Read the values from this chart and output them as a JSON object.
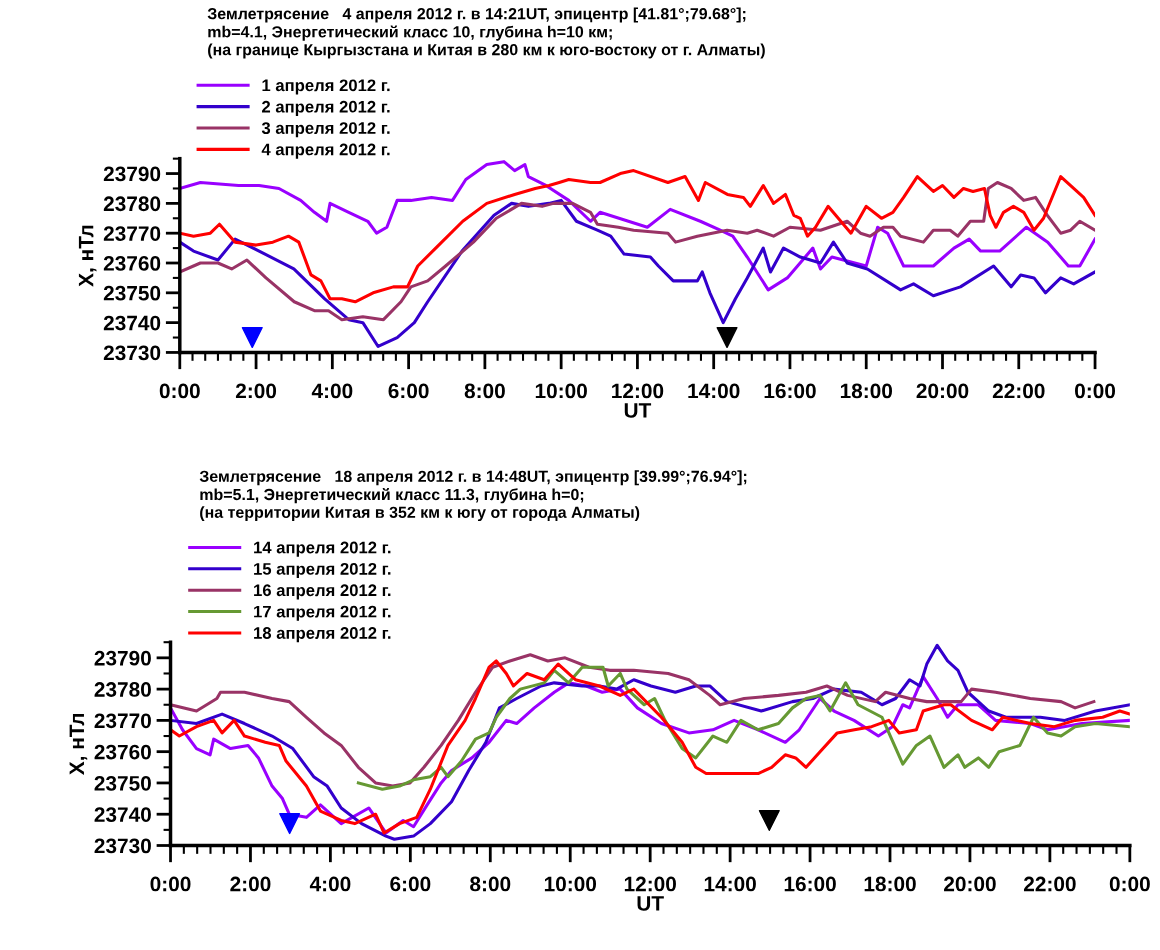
{
  "chart_data": [
    {
      "type": "line",
      "title": "Землетрясение   4 апреля 2012 г. в 14:21UT, эпицентр [41.81°;79.68°];\nmb=4.1, Энергетический класс 10, глубина h=10 км;\n(на границе Кыргызстана и Китая в 280 км к юго-востоку от г. Алматы)",
      "xlabel": "UT",
      "ylabel": "X, нТл",
      "xlim": [
        0,
        24
      ],
      "xticks": [
        {
          "value": 0,
          "label": "0:00"
        },
        {
          "value": 2,
          "label": "2:00"
        },
        {
          "value": 4,
          "label": "4:00"
        },
        {
          "value": 6,
          "label": "6:00"
        },
        {
          "value": 8,
          "label": "8:00"
        },
        {
          "value": 10,
          "label": "10:00"
        },
        {
          "value": 12,
          "label": "12:00"
        },
        {
          "value": 14,
          "label": "14:00"
        },
        {
          "value": 16,
          "label": "16:00"
        },
        {
          "value": 18,
          "label": "18:00"
        },
        {
          "value": 20,
          "label": "20:00"
        },
        {
          "value": 22,
          "label": "22:00"
        },
        {
          "value": 24,
          "label": "0:00"
        }
      ],
      "ylim": [
        23730,
        23795
      ],
      "yticks": [
        23730,
        23740,
        23750,
        23760,
        23770,
        23780,
        23790
      ],
      "legend": "top left",
      "grid": false,
      "series": [
        {
          "name": "1 апреля 2012 г.",
          "color": "#9900ff",
          "x": [
            0,
            0.54,
            1.54,
            2.08,
            2.6,
            3.17,
            3.53,
            3.85,
            3.94,
            4.43,
            4.93,
            5.16,
            5.43,
            5.7,
            6.06,
            6.6,
            7.15,
            7.5,
            8.05,
            8.5,
            8.78,
            9.05,
            9.14,
            9.6,
            10.2,
            10.77,
            11.02,
            12.26,
            12.86,
            13.65,
            14.17,
            14.5,
            14.88,
            15.43,
            15.93,
            16.6,
            16.8,
            17.1,
            18.0,
            18.3,
            18.56,
            18.98,
            19.76,
            20.3,
            20.7,
            21.0,
            21.5,
            22.2,
            22.76,
            23.3,
            23.6,
            24.0
          ],
          "values": [
            23785,
            23787,
            23786,
            23786,
            23785,
            23781,
            23777,
            23774,
            23780,
            23777,
            23774,
            23770,
            23772,
            23781,
            23781,
            23782,
            23781,
            23788,
            23793,
            23794,
            23791,
            23793,
            23789,
            23786,
            23781,
            23774,
            23777,
            23772,
            23778,
            23774,
            23771,
            23769,
            23762,
            23751,
            23755,
            23765,
            23758,
            23762,
            23759,
            23772,
            23770,
            23759,
            23759,
            23765,
            23768,
            23764,
            23764,
            23772,
            23767,
            23759,
            23759,
            23768
          ]
        },
        {
          "name": "2 апреля 2012 г.",
          "color": "#3300cc",
          "x": [
            0,
            0.36,
            1.0,
            1.45,
            2.08,
            2.99,
            3.8,
            4.43,
            4.8,
            5.2,
            5.7,
            6.15,
            6.5,
            7.4,
            8.24,
            8.7,
            9.14,
            9.68,
            10.0,
            10.4,
            10.95,
            11.3,
            11.65,
            12.34,
            12.55,
            12.94,
            13.57,
            13.7,
            13.9,
            14.25,
            14.57,
            14.88,
            15.3,
            15.49,
            15.83,
            16.27,
            16.8,
            17.14,
            17.5,
            18.03,
            18.9,
            19.24,
            19.76,
            20.47,
            21.34,
            21.8,
            22.05,
            22.4,
            22.7,
            23.1,
            23.44,
            24.0
          ],
          "values": [
            23767,
            23764,
            23761,
            23768,
            23764,
            23758,
            23748,
            23741,
            23740,
            23732,
            23735,
            23740,
            23747,
            23764,
            23776,
            23780,
            23779,
            23780,
            23781,
            23774,
            23771,
            23769,
            23763,
            23762,
            23759,
            23754,
            23754,
            23757,
            23750,
            23740,
            23748,
            23755,
            23765,
            23757,
            23765,
            23762,
            23760,
            23767,
            23760,
            23758,
            23751,
            23753,
            23749,
            23752,
            23759,
            23752,
            23756,
            23755,
            23750,
            23755,
            23753,
            23757
          ]
        },
        {
          "name": "3 апреля 2012 г.",
          "color": "#993366",
          "x": [
            0,
            0.54,
            1.0,
            1.36,
            1.76,
            2.26,
            3.0,
            3.53,
            3.9,
            4.25,
            4.8,
            5.34,
            5.8,
            6.06,
            6.5,
            6.97,
            7.7,
            8.3,
            8.96,
            9.5,
            9.8,
            10.3,
            10.77,
            10.95,
            11.5,
            11.9,
            12.8,
            13.0,
            13.57,
            14.35,
            14.88,
            15.14,
            15.57,
            16.0,
            16.8,
            17.5,
            17.85,
            18.1,
            18.45,
            18.7,
            18.9,
            19.5,
            19.76,
            20.2,
            20.4,
            20.73,
            21.08,
            21.2,
            21.44,
            21.8,
            22.13,
            22.44,
            22.75,
            23.1,
            23.36,
            23.6,
            24.0
          ],
          "values": [
            23757,
            23760,
            23760,
            23758,
            23761,
            23755,
            23747,
            23744,
            23744,
            23741,
            23742,
            23741,
            23747,
            23752,
            23754,
            23759,
            23767,
            23775,
            23780,
            23779,
            23780,
            23780,
            23777,
            23773,
            23772,
            23771,
            23770,
            23767,
            23769,
            23771,
            23770,
            23771,
            23769,
            23772,
            23771,
            23774,
            23770,
            23769,
            23772,
            23772,
            23769,
            23767,
            23771,
            23771,
            23769,
            23774,
            23774,
            23785,
            23787,
            23785,
            23781,
            23782,
            23776,
            23770,
            23771,
            23774,
            23771
          ]
        },
        {
          "name": "4 апреля 2012 г.",
          "color": "#ff0000",
          "x": [
            0,
            0.36,
            0.8,
            1.04,
            1.45,
            2.0,
            2.44,
            2.85,
            3.12,
            3.44,
            3.7,
            3.94,
            4.25,
            4.6,
            5.07,
            5.6,
            5.97,
            6.24,
            6.79,
            7.42,
            8.05,
            8.78,
            9.32,
            9.68,
            9.95,
            10.2,
            10.77,
            11.02,
            11.55,
            11.9,
            12.8,
            13.25,
            13.6,
            13.78,
            14.36,
            14.78,
            14.96,
            15.3,
            15.57,
            15.88,
            16.1,
            16.27,
            16.46,
            16.67,
            17.0,
            17.6,
            18.0,
            18.4,
            18.7,
            18.98,
            19.34,
            19.76,
            20.0,
            20.3,
            20.55,
            20.8,
            21.1,
            21.25,
            21.4,
            21.6,
            21.86,
            22.13,
            22.4,
            22.65,
            23.1,
            23.44,
            23.7,
            24.0
          ],
          "values": [
            23770,
            23769,
            23770,
            23773,
            23767,
            23766,
            23767,
            23769,
            23767,
            23756,
            23754,
            23748,
            23748,
            23747,
            23750,
            23752,
            23752,
            23759,
            23766,
            23774,
            23780,
            23783,
            23785,
            23786,
            23787,
            23788,
            23787,
            23787,
            23790,
            23791,
            23787,
            23789,
            23781,
            23787,
            23783,
            23782,
            23779,
            23786,
            23780,
            23783,
            23776,
            23775,
            23769,
            23772,
            23779,
            23770,
            23779,
            23775,
            23777,
            23782,
            23789,
            23784,
            23786,
            23782,
            23785,
            23784,
            23785,
            23776,
            23772,
            23777,
            23779,
            23777,
            23771,
            23775,
            23789,
            23785,
            23782,
            23776
          ]
        },
        {
          "type": "scatter",
          "marker": "triangle",
          "color": "#0000ff",
          "x": [
            1.9
          ],
          "values": [
            23735
          ]
        },
        {
          "type": "scatter",
          "marker": "triangle",
          "color": "#000000",
          "x": [
            14.35
          ],
          "values": [
            23735
          ]
        }
      ]
    },
    {
      "type": "line",
      "title": "Землетрясение   18 апреля 2012 г. в 14:48UT, эпицентр [39.99°;76.94°];\nmb=5.1, Энергетический класс 11.3, глубина h=0;\n(на территории Китая в 352 км к югу от города Алматы)",
      "xlabel": "UT",
      "ylabel": "X, нТл",
      "xlim": [
        0,
        24
      ],
      "xticks": [
        {
          "value": 0,
          "label": "0:00"
        },
        {
          "value": 2,
          "label": "2:00"
        },
        {
          "value": 4,
          "label": "4:00"
        },
        {
          "value": 6,
          "label": "6:00"
        },
        {
          "value": 8,
          "label": "8:00"
        },
        {
          "value": 10,
          "label": "10:00"
        },
        {
          "value": 12,
          "label": "12:00"
        },
        {
          "value": 14,
          "label": "14:00"
        },
        {
          "value": 16,
          "label": "16:00"
        },
        {
          "value": 18,
          "label": "18:00"
        },
        {
          "value": 20,
          "label": "20:00"
        },
        {
          "value": 22,
          "label": "22:00"
        },
        {
          "value": 24,
          "label": "0:00"
        }
      ],
      "ylim": [
        23730,
        23795
      ],
      "yticks": [
        23730,
        23740,
        23750,
        23760,
        23770,
        23780,
        23790
      ],
      "legend": "top left",
      "grid": false,
      "series": [
        {
          "name": "14 апреля 2012 г.",
          "color": "#9900ff",
          "x": [
            0,
            0.3,
            0.65,
            0.99,
            1.08,
            1.5,
            1.94,
            2.2,
            2.54,
            2.8,
            2.97,
            3.4,
            3.75,
            4.27,
            4.96,
            5.39,
            5.82,
            6.08,
            6.42,
            6.77,
            7.03,
            7.54,
            7.97,
            8.4,
            8.66,
            9.1,
            9.6,
            9.96,
            10.4,
            10.8,
            11.25,
            11.68,
            12.28,
            12.97,
            13.57,
            14.1,
            14.7,
            15.38,
            15.73,
            16.25,
            16.6,
            17.1,
            17.71,
            18.06,
            18.32,
            18.49,
            18.83,
            19.18,
            19.44,
            19.7,
            20.21,
            20.64,
            21.51,
            21.94,
            22.8,
            24.0
          ],
          "values": [
            23774,
            23767,
            23761,
            23759,
            23764,
            23761,
            23762,
            23758,
            23749,
            23745,
            23740,
            23739,
            23743,
            23737,
            23742,
            23734,
            23738,
            23736,
            23743,
            23750,
            23754,
            23758,
            23763,
            23770,
            23769,
            23774,
            23779,
            23782,
            23781,
            23779,
            23780,
            23774,
            23769,
            23766,
            23767,
            23770,
            23767,
            23763,
            23767,
            23777,
            23773,
            23770,
            23765,
            23768,
            23775,
            23774,
            23784,
            23777,
            23771,
            23775,
            23775,
            23770,
            23769,
            23767,
            23769,
            23770
          ]
        },
        {
          "name": "15 апреля 2012 г.",
          "color": "#3300cc",
          "x": [
            0,
            0.65,
            1.29,
            1.85,
            2.54,
            3.06,
            3.58,
            3.92,
            4.27,
            4.78,
            5.39,
            5.6,
            6.08,
            6.5,
            7.03,
            7.46,
            7.89,
            8.23,
            8.66,
            9.27,
            9.6,
            10.3,
            10.73,
            11.16,
            11.59,
            12.02,
            12.63,
            13.14,
            13.49,
            13.92,
            14.78,
            15.56,
            16.07,
            16.59,
            17.28,
            17.8,
            18.14,
            18.49,
            18.75,
            18.92,
            19.18,
            19.44,
            19.7,
            19.95,
            20.47,
            20.9,
            21.76,
            22.37,
            23.14,
            24.0
          ],
          "values": [
            23770,
            23769,
            23772,
            23769,
            23765,
            23761,
            23752,
            23749,
            23742,
            23737,
            23733,
            23732,
            23733,
            23737,
            23744,
            23754,
            23763,
            23774,
            23777,
            23781,
            23782,
            23781,
            23781,
            23780,
            23783,
            23781,
            23779,
            23781,
            23781,
            23776,
            23773,
            23776,
            23777,
            23780,
            23779,
            23775,
            23777,
            23783,
            23781,
            23788,
            23794,
            23789,
            23786,
            23779,
            23773,
            23771,
            23771,
            23770,
            23773,
            23775
          ]
        },
        {
          "name": "16 апреля 2012 г.",
          "color": "#993366",
          "x": [
            0,
            0.65,
            1.16,
            1.25,
            1.85,
            2.54,
            2.97,
            3.4,
            3.84,
            4.27,
            4.7,
            5.13,
            5.56,
            5.99,
            6.34,
            6.77,
            7.2,
            7.63,
            8.06,
            8.49,
            9.0,
            9.44,
            9.87,
            10.47,
            10.99,
            11.59,
            12.45,
            12.97,
            13.49,
            13.75,
            14.35,
            15.21,
            15.9,
            16.42,
            16.94,
            17.63,
            17.89,
            18.49,
            18.92,
            19.78,
            20.04,
            20.64,
            21.51,
            22.28,
            22.63,
            23.1
          ],
          "values": [
            23775,
            23773,
            23777,
            23779,
            23779,
            23777,
            23776,
            23771,
            23766,
            23762,
            23755,
            23750,
            23749,
            23750,
            23755,
            23762,
            23770,
            23779,
            23787,
            23789,
            23791,
            23789,
            23790,
            23787,
            23786,
            23786,
            23785,
            23783,
            23778,
            23775,
            23777,
            23778,
            23779,
            23781,
            23778,
            23776,
            23779,
            23777,
            23776,
            23776,
            23780,
            23779,
            23777,
            23776,
            23774,
            23776
          ]
        },
        {
          "name": "17 апреля 2012 г.",
          "color": "#669933",
          "x": [
            4.7,
            5.3,
            5.73,
            6.08,
            6.5,
            6.77,
            6.94,
            7.28,
            7.63,
            7.97,
            8.15,
            8.49,
            8.75,
            9.35,
            9.6,
            9.96,
            10.3,
            10.82,
            10.95,
            11.25,
            11.42,
            11.85,
            12.11,
            12.37,
            12.8,
            13.14,
            13.57,
            13.92,
            14.27,
            14.7,
            15.21,
            15.56,
            15.9,
            16.25,
            16.5,
            16.89,
            17.2,
            17.8,
            18.32,
            18.66,
            19.0,
            19.35,
            19.7,
            19.87,
            20.21,
            20.47,
            20.73,
            21.25,
            21.59,
            21.94,
            22.28,
            22.63,
            23.14,
            24.0
          ],
          "values": [
            23750,
            23748,
            23749,
            23751,
            23752,
            23755,
            23752,
            23757,
            23764,
            23766,
            23771,
            23777,
            23780,
            23782,
            23786,
            23782,
            23787,
            23787,
            23781,
            23785,
            23780,
            23775,
            23777,
            23770,
            23761,
            23758,
            23765,
            23763,
            23770,
            23767,
            23769,
            23774,
            23777,
            23778,
            23773,
            23782,
            23775,
            23771,
            23756,
            23762,
            23765,
            23755,
            23759,
            23755,
            23758,
            23755,
            23760,
            23762,
            23771,
            23766,
            23765,
            23768,
            23769,
            23768
          ]
        },
        {
          "name": "18 апреля 2012 г.",
          "color": "#ff0000",
          "x": [
            0,
            0.22,
            0.65,
            1.08,
            1.29,
            1.59,
            1.85,
            2.37,
            2.72,
            2.89,
            3.4,
            3.75,
            4.27,
            4.61,
            5.13,
            5.34,
            5.73,
            6.16,
            6.5,
            6.94,
            7.37,
            7.63,
            7.97,
            8.15,
            8.4,
            8.58,
            8.92,
            9.35,
            9.7,
            10.13,
            10.73,
            11.25,
            11.59,
            12.28,
            12.8,
            13.14,
            13.4,
            14.18,
            14.7,
            15.04,
            15.38,
            15.64,
            15.9,
            16.25,
            16.68,
            17.11,
            17.54,
            17.97,
            18.23,
            18.66,
            18.83,
            19.35,
            19.52,
            20.04,
            20.56,
            20.82,
            21.51,
            22.11,
            22.63,
            23.32,
            23.75,
            24.0
          ],
          "values": [
            23767,
            23765,
            23768,
            23770,
            23766,
            23770,
            23765,
            23763,
            23762,
            23757,
            23749,
            23741,
            23738,
            23737,
            23740,
            23734,
            23737,
            23739,
            23748,
            23762,
            23770,
            23777,
            23787,
            23789,
            23785,
            23781,
            23785,
            23783,
            23788,
            23783,
            23781,
            23778,
            23780,
            23771,
            23763,
            23755,
            23753,
            23753,
            23753,
            23755,
            23759,
            23758,
            23755,
            23760,
            23766,
            23767,
            23768,
            23770,
            23766,
            23767,
            23773,
            23775,
            23775,
            23770,
            23767,
            23771,
            23769,
            23768,
            23770,
            23771,
            23773,
            23772
          ]
        },
        {
          "type": "scatter",
          "marker": "triangle",
          "color": "#0000ff",
          "x": [
            2.98
          ],
          "values": [
            23737
          ]
        },
        {
          "type": "scatter",
          "marker": "triangle",
          "color": "#000000",
          "x": [
            14.98
          ],
          "values": [
            23738
          ]
        }
      ]
    }
  ]
}
